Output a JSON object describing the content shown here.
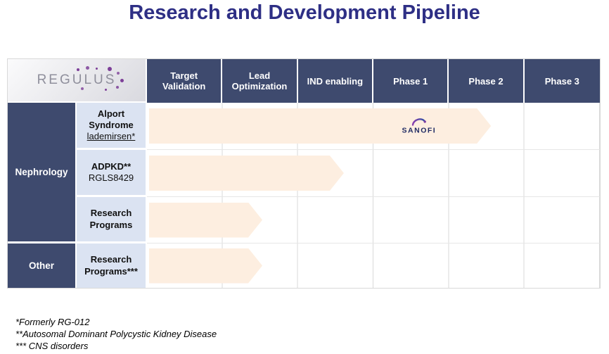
{
  "page": {
    "title": "Research and Development Pipeline"
  },
  "logo": {
    "text": "REGULUS"
  },
  "header": {
    "columns": [
      "Target Validation",
      "Lead Optimization",
      "IND enabling",
      "Phase 1",
      "Phase 2",
      "Phase 3"
    ]
  },
  "chart_data": {
    "type": "table",
    "title": "Research and Development Pipeline",
    "stages": [
      "Target Validation",
      "Lead Optimization",
      "IND enabling",
      "Phase 1",
      "Phase 2",
      "Phase 3"
    ],
    "groups": [
      {
        "name": "Nephrology",
        "programs": [
          {
            "name": "Alport Syndrome",
            "drug": "lademirsen*",
            "partner": "SANOFI",
            "progress_stage": "Phase 2",
            "progress_pct": 75.5
          },
          {
            "name": "ADPKD**",
            "drug": "RGLS8429",
            "progress_stage": "IND enabling",
            "progress_pct": 43
          },
          {
            "name": "Research Programs",
            "progress_stage": "Lead Optimization",
            "progress_pct": 25
          }
        ]
      },
      {
        "name": "Other",
        "programs": [
          {
            "name": "Research Programs***",
            "progress_stage": "Lead Optimization",
            "progress_pct": 25
          }
        ]
      }
    ]
  },
  "footnotes": [
    "*Formerly RG-012",
    "**Autosomal Dominant Polycystic Kidney Disease",
    "*** CNS disorders"
  ],
  "colors": {
    "title": "#2e2f85",
    "header_bg": "#3e4a6e",
    "label_bg": "#dbe3f2",
    "arrow_fill": "#fdeee0",
    "dot_purple": "#7d3f98",
    "sanofi_text": "#1f2a63"
  }
}
